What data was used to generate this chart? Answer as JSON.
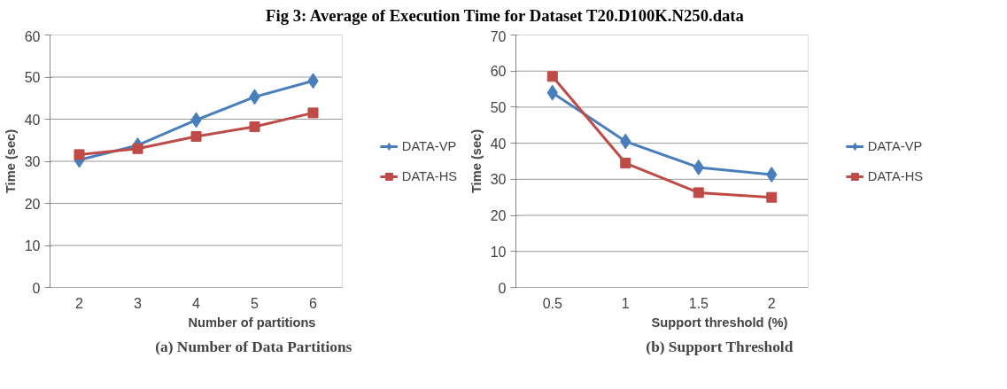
{
  "chart_data": [
    {
      "type": "line",
      "title": "Fig 3: Average of Execution Time for Dataset T20.D100K.N250.data",
      "xlabel": "Number  of partitions",
      "ylabel": "Time (sec)",
      "categories": [
        "2",
        "3",
        "4",
        "5",
        "6"
      ],
      "series": [
        {
          "name": "DATA-VP",
          "color": "#4a7ebb",
          "marker": "diamond",
          "values": [
            30.3,
            33.8,
            39.8,
            45.3,
            49.1
          ]
        },
        {
          "name": "DATA-HS",
          "color": "#be4b48",
          "marker": "square",
          "values": [
            31.6,
            33.0,
            35.9,
            38.2,
            41.5
          ]
        }
      ],
      "ylim": [
        0,
        60
      ],
      "yticks": [
        0,
        10,
        20,
        30,
        40,
        50,
        60
      ],
      "grid": "y",
      "legend": "right",
      "annotations": [
        "(a) Number of Data Partitions"
      ]
    },
    {
      "type": "line",
      "xlabel": "Support threshold (%)",
      "ylabel": "Time (sec)",
      "categories": [
        "0.5",
        "1",
        "1.5",
        "2"
      ],
      "series": [
        {
          "name": "DATA-VP",
          "color": "#4a7ebb",
          "marker": "diamond",
          "values": [
            54.0,
            40.5,
            33.3,
            31.3
          ]
        },
        {
          "name": "DATA-HS",
          "color": "#be4b48",
          "marker": "square",
          "values": [
            58.5,
            34.5,
            26.3,
            25.0
          ]
        }
      ],
      "ylim": [
        0,
        70
      ],
      "yticks": [
        0,
        10,
        20,
        30,
        40,
        50,
        60,
        70
      ],
      "grid": "y",
      "legend": "right",
      "annotations": [
        "(b) Support Threshold"
      ]
    }
  ]
}
